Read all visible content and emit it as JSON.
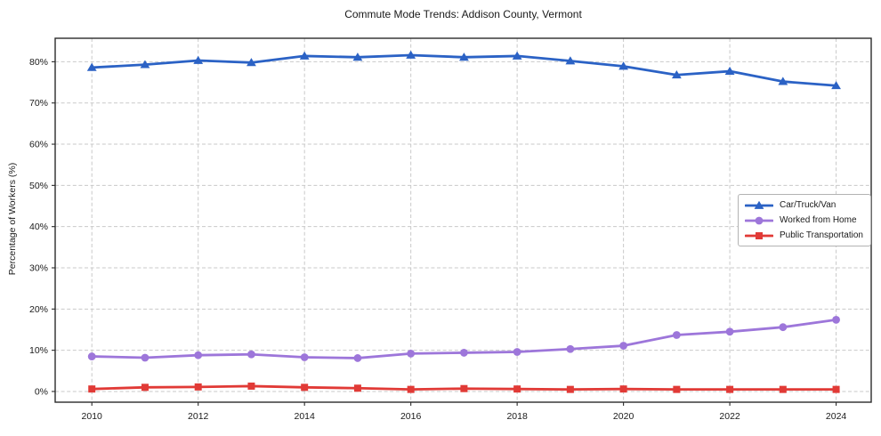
{
  "chart_data": {
    "type": "line",
    "title": "Commute Mode Trends: Addison County, Vermont",
    "ylabel": "Percentage of Workers (%)",
    "x": [
      2010,
      2011,
      2012,
      2013,
      2014,
      2015,
      2016,
      2017,
      2018,
      2019,
      2020,
      2021,
      2022,
      2023,
      2024
    ],
    "xtick_years": [
      2010,
      2012,
      2014,
      2016,
      2018,
      2020,
      2022,
      2024
    ],
    "xtick_labels": [
      "2010",
      "2012",
      "2014",
      "2016",
      "2018",
      "2020",
      "2022",
      "2024"
    ],
    "ytick_values": [
      0,
      10,
      20,
      30,
      40,
      50,
      60,
      70,
      80
    ],
    "ytick_labels": [
      "0%",
      "10%",
      "20%",
      "30%",
      "40%",
      "50%",
      "60%",
      "70%",
      "80%"
    ],
    "xlim": [
      2009.31,
      2024.66
    ],
    "ylim": [
      -2.6,
      85.7
    ],
    "grid": true,
    "legend_position": "center-right",
    "series": [
      {
        "name": "Car/Truck/Van",
        "color": "#2b62c5",
        "marker": "triangle",
        "values": [
          78.6,
          79.3,
          80.3,
          79.8,
          81.4,
          81.1,
          81.6,
          81.1,
          81.4,
          80.2,
          78.9,
          76.8,
          77.7,
          75.2,
          74.2
        ]
      },
      {
        "name": "Worked from Home",
        "color": "#9d76da",
        "marker": "circle",
        "values": [
          8.5,
          8.2,
          8.8,
          9.0,
          8.3,
          8.1,
          9.2,
          9.4,
          9.6,
          10.3,
          11.1,
          13.7,
          14.5,
          15.6,
          17.4
        ]
      },
      {
        "name": "Public Transportation",
        "color": "#e13a36",
        "marker": "square",
        "values": [
          0.6,
          1.0,
          1.1,
          1.3,
          1.0,
          0.8,
          0.5,
          0.7,
          0.6,
          0.5,
          0.6,
          0.5,
          0.5,
          0.5,
          0.5
        ]
      }
    ]
  },
  "colors": {
    "background": "#ffffff",
    "grid": "#c9c9c9",
    "axis": "#2b2b2b",
    "text": "#1a1a1a"
  }
}
